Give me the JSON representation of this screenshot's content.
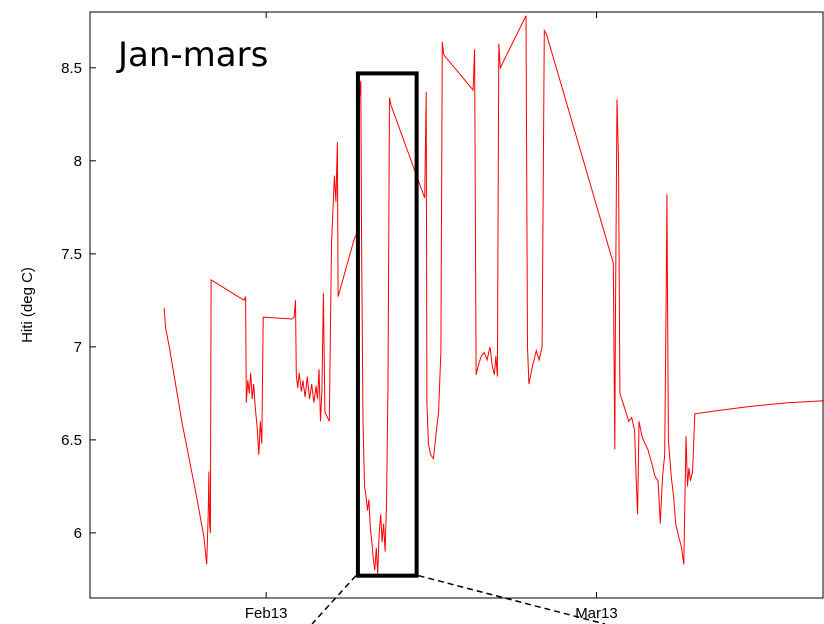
{
  "chart_data": {
    "type": "line",
    "title": "Jan-mars",
    "xlabel": "",
    "ylabel": "Hiti (deg C)",
    "xlim": [
      0,
      100
    ],
    "ylim": [
      5.65,
      8.8
    ],
    "xtick_labels": [
      {
        "label": "Feb13",
        "x": 24
      },
      {
        "label": "Mar13",
        "x": 69
      }
    ],
    "ytick_labels": [
      "6",
      "6.5",
      "7",
      "7.5",
      "8",
      "8.5"
    ],
    "ytick_values": [
      6,
      6.5,
      7,
      7.5,
      8,
      8.5
    ],
    "grid": false,
    "legend": "none",
    "series_color": "#ff0000",
    "highlight_box": {
      "x": [
        36.5,
        44.5
      ],
      "y": [
        5.77,
        8.47
      ]
    },
    "series": [
      {
        "values_note": "",
        "points": [
          [
            10.1,
            7.21
          ],
          [
            10.3,
            7.1
          ],
          [
            10.8,
            7.0
          ],
          [
            12.5,
            6.6
          ],
          [
            14.5,
            6.2
          ],
          [
            15.5,
            5.98
          ],
          [
            15.9,
            5.83
          ],
          [
            16.1,
            6.1
          ],
          [
            16.2,
            6.33
          ],
          [
            16.3,
            6.05
          ],
          [
            16.4,
            6.0
          ],
          [
            16.5,
            7.36
          ],
          [
            21.0,
            7.25
          ],
          [
            21.2,
            7.27
          ],
          [
            21.3,
            6.7
          ],
          [
            21.5,
            6.82
          ],
          [
            21.7,
            6.75
          ],
          [
            21.9,
            6.86
          ],
          [
            22.1,
            6.72
          ],
          [
            22.3,
            6.8
          ],
          [
            22.5,
            6.68
          ],
          [
            22.8,
            6.55
          ],
          [
            23.0,
            6.42
          ],
          [
            23.2,
            6.6
          ],
          [
            23.4,
            6.48
          ],
          [
            23.6,
            7.16
          ],
          [
            27.5,
            7.15
          ],
          [
            27.8,
            7.16
          ],
          [
            28.0,
            7.25
          ],
          [
            28.1,
            6.85
          ],
          [
            28.3,
            6.78
          ],
          [
            28.5,
            6.86
          ],
          [
            28.8,
            6.76
          ],
          [
            29.0,
            6.82
          ],
          [
            29.3,
            6.73
          ],
          [
            29.6,
            6.84
          ],
          [
            29.9,
            6.72
          ],
          [
            30.2,
            6.8
          ],
          [
            30.5,
            6.7
          ],
          [
            30.8,
            6.79
          ],
          [
            31.0,
            6.72
          ],
          [
            31.2,
            6.88
          ],
          [
            31.4,
            6.6
          ],
          [
            31.6,
            6.76
          ],
          [
            31.8,
            7.29
          ],
          [
            32.0,
            6.65
          ],
          [
            32.6,
            6.6
          ],
          [
            32.9,
            7.55
          ],
          [
            33.3,
            7.92
          ],
          [
            33.5,
            7.78
          ],
          [
            33.7,
            8.1
          ],
          [
            33.8,
            7.27
          ],
          [
            36.0,
            7.58
          ],
          [
            36.5,
            7.62
          ],
          [
            36.7,
            8.33
          ],
          [
            36.9,
            8.43
          ],
          [
            37.0,
            7.55
          ],
          [
            37.2,
            6.6
          ],
          [
            37.4,
            6.25
          ],
          [
            37.6,
            6.2
          ],
          [
            37.8,
            6.12
          ],
          [
            38.0,
            6.18
          ],
          [
            38.2,
            6.02
          ],
          [
            38.4,
            5.95
          ],
          [
            38.6,
            5.86
          ],
          [
            38.8,
            5.8
          ],
          [
            39.0,
            5.92
          ],
          [
            39.2,
            5.78
          ],
          [
            39.4,
            6.0
          ],
          [
            39.6,
            6.1
          ],
          [
            39.8,
            5.95
          ],
          [
            40.0,
            6.05
          ],
          [
            40.2,
            5.9
          ],
          [
            40.4,
            6.15
          ],
          [
            40.6,
            6.8
          ],
          [
            40.8,
            8.34
          ],
          [
            41.0,
            8.3
          ],
          [
            45.6,
            7.8
          ],
          [
            45.8,
            8.37
          ],
          [
            45.9,
            6.7
          ],
          [
            46.1,
            6.48
          ],
          [
            46.4,
            6.42
          ],
          [
            46.8,
            6.4
          ],
          [
            47.2,
            6.55
          ],
          [
            47.5,
            6.65
          ],
          [
            47.8,
            6.98
          ],
          [
            48.0,
            8.64
          ],
          [
            48.2,
            8.57
          ],
          [
            52.2,
            8.38
          ],
          [
            52.4,
            8.6
          ],
          [
            52.6,
            6.85
          ],
          [
            52.9,
            6.9
          ],
          [
            53.3,
            6.95
          ],
          [
            53.7,
            6.97
          ],
          [
            54.1,
            6.93
          ],
          [
            54.5,
            7.0
          ],
          [
            54.8,
            6.9
          ],
          [
            55.1,
            6.85
          ],
          [
            55.3,
            6.95
          ],
          [
            55.5,
            6.84
          ],
          [
            55.7,
            8.63
          ],
          [
            55.9,
            8.5
          ],
          [
            59.4,
            8.78
          ],
          [
            59.6,
            7.0
          ],
          [
            59.8,
            6.8
          ],
          [
            60.3,
            6.9
          ],
          [
            60.8,
            6.98
          ],
          [
            61.2,
            6.93
          ],
          [
            61.6,
            7.0
          ],
          [
            61.9,
            8.7
          ],
          [
            62.2,
            8.68
          ],
          [
            71.3,
            7.45
          ],
          [
            71.5,
            6.45
          ],
          [
            71.6,
            7.2
          ],
          [
            71.8,
            8.33
          ],
          [
            72.0,
            8.0
          ],
          [
            72.2,
            6.75
          ],
          [
            72.6,
            6.7
          ],
          [
            73.0,
            6.65
          ],
          [
            73.4,
            6.6
          ],
          [
            73.8,
            6.62
          ],
          [
            74.2,
            6.55
          ],
          [
            74.4,
            6.3
          ],
          [
            74.6,
            6.1
          ],
          [
            74.8,
            6.6
          ],
          [
            75.2,
            6.52
          ],
          [
            75.6,
            6.48
          ],
          [
            76.0,
            6.45
          ],
          [
            76.5,
            6.38
          ],
          [
            77.0,
            6.3
          ],
          [
            77.4,
            6.28
          ],
          [
            77.7,
            6.05
          ],
          [
            78.0,
            6.3
          ],
          [
            78.3,
            6.42
          ],
          [
            78.5,
            7.3
          ],
          [
            78.6,
            7.82
          ],
          [
            78.8,
            6.5
          ],
          [
            79.2,
            6.3
          ],
          [
            79.5,
            6.2
          ],
          [
            79.8,
            6.05
          ],
          [
            80.2,
            5.98
          ],
          [
            80.6,
            5.92
          ],
          [
            80.9,
            5.83
          ],
          [
            81.2,
            6.52
          ],
          [
            81.4,
            6.25
          ],
          [
            81.6,
            6.35
          ],
          [
            81.8,
            6.28
          ],
          [
            82.1,
            6.33
          ],
          [
            82.4,
            6.64
          ],
          [
            86.0,
            6.66
          ],
          [
            90.0,
            6.68
          ],
          [
            95.0,
            6.7
          ],
          [
            100.0,
            6.71
          ]
        ]
      }
    ]
  }
}
